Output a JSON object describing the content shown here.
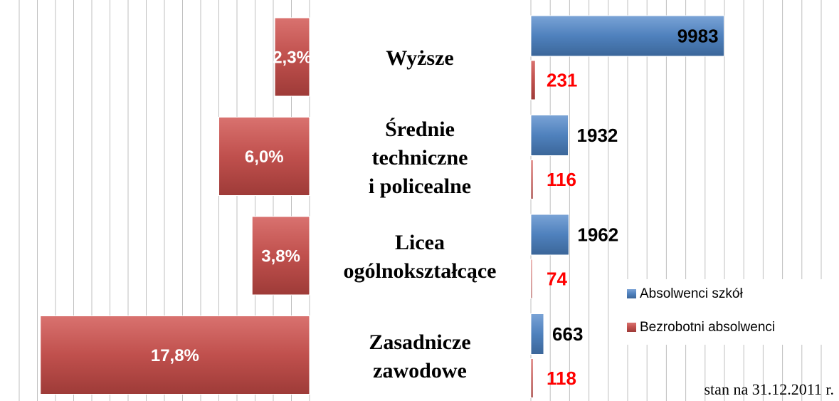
{
  "chart_data": [
    {
      "type": "bar",
      "orientation": "horizontal",
      "direction": "left",
      "categories": [
        "Wyższe",
        "Średnie\ntechniczne\ni policealne",
        "Licea\nogólnokształcące",
        "Zasadnicze\nzawodowe"
      ],
      "values": [
        2.3,
        6.0,
        3.8,
        17.8
      ],
      "value_labels": [
        "2,3%",
        "6,0%",
        "3,8%",
        "17,8%"
      ],
      "color": "#c0504d",
      "xlim": [
        0,
        20
      ],
      "xticks": [
        0,
        1.2,
        2.4,
        3.6,
        4.8,
        6,
        7.2,
        8.4,
        9.6,
        10.8,
        12,
        13.2,
        14.4,
        15.6,
        16.8,
        18,
        19.2
      ],
      "grid": true
    },
    {
      "type": "bar",
      "orientation": "horizontal",
      "series": [
        {
          "name": "Absolwenci szkół",
          "color": "#4f81bd",
          "values": [
            9983,
            1932,
            1962,
            663
          ]
        },
        {
          "name": "Bezrobotni absolwenci",
          "color": "#c0504d",
          "values": [
            231,
            116,
            74,
            118
          ]
        }
      ],
      "xlim": [
        0,
        15000
      ],
      "xticks": [
        0,
        1000,
        2000,
        3000,
        4000,
        5000,
        6000,
        7000,
        8000,
        9000,
        10000,
        11000,
        12000,
        13000,
        14000,
        15000
      ],
      "grid": true,
      "legend": "lower right",
      "annotation": "stan na 31.12.2011 r."
    }
  ]
}
